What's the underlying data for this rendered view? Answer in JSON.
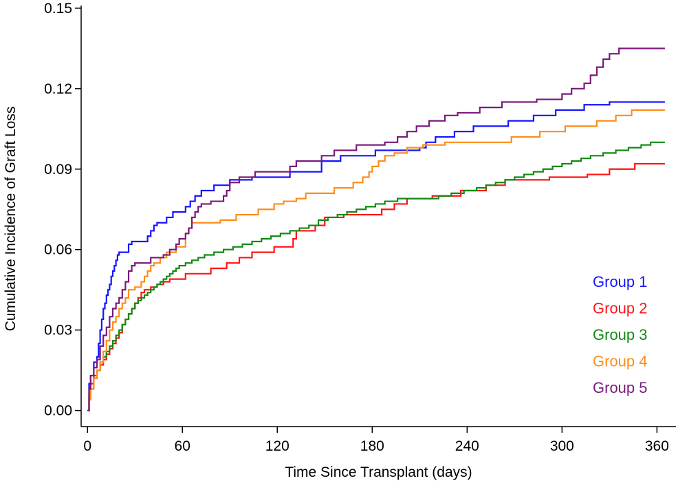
{
  "chart_data": {
    "type": "line",
    "title": "",
    "xlabel": "Time Since Transplant (days)",
    "ylabel": "Cumulative Incidence of Graft Loss",
    "xlim": [
      -4,
      372
    ],
    "ylim": [
      -0.006,
      0.151
    ],
    "xticks": [
      0,
      60,
      120,
      180,
      240,
      300,
      360
    ],
    "xtick_labels": [
      "0",
      "60",
      "120",
      "180",
      "240",
      "300",
      "360"
    ],
    "yticks": [
      0.0,
      0.03,
      0.06,
      0.09,
      0.12,
      0.15
    ],
    "ytick_labels": [
      "0.00",
      "0.03",
      "0.06",
      "0.09",
      "0.12",
      "0.15"
    ],
    "grid": false,
    "legend_position": "bottom-right",
    "step": true,
    "series": [
      {
        "name": "Group 1",
        "color": "#1414ff",
        "points": [
          [
            0,
            0
          ],
          [
            1,
            0.01
          ],
          [
            2,
            0.013
          ],
          [
            4,
            0.018
          ],
          [
            6,
            0.02
          ],
          [
            7,
            0.025
          ],
          [
            8,
            0.03
          ],
          [
            9,
            0.034
          ],
          [
            10,
            0.038
          ],
          [
            11,
            0.04
          ],
          [
            12,
            0.043
          ],
          [
            13,
            0.045
          ],
          [
            14,
            0.047
          ],
          [
            15,
            0.05
          ],
          [
            16,
            0.052
          ],
          [
            17,
            0.054
          ],
          [
            18,
            0.056
          ],
          [
            19,
            0.058
          ],
          [
            20,
            0.059
          ],
          [
            26,
            0.062
          ],
          [
            28,
            0.063
          ],
          [
            38,
            0.065
          ],
          [
            40,
            0.067
          ],
          [
            42,
            0.069
          ],
          [
            44,
            0.07
          ],
          [
            50,
            0.072
          ],
          [
            54,
            0.074
          ],
          [
            62,
            0.076
          ],
          [
            65,
            0.078
          ],
          [
            68,
            0.08
          ],
          [
            72,
            0.082
          ],
          [
            80,
            0.084
          ],
          [
            90,
            0.086
          ],
          [
            104,
            0.087
          ],
          [
            128,
            0.089
          ],
          [
            148,
            0.093
          ],
          [
            160,
            0.095
          ],
          [
            182,
            0.097
          ],
          [
            210,
            0.098
          ],
          [
            214,
            0.1
          ],
          [
            220,
            0.102
          ],
          [
            232,
            0.104
          ],
          [
            244,
            0.106
          ],
          [
            266,
            0.108
          ],
          [
            282,
            0.11
          ],
          [
            296,
            0.112
          ],
          [
            314,
            0.114
          ],
          [
            330,
            0.115
          ],
          [
            365,
            0.115
          ]
        ]
      },
      {
        "name": "Group 2",
        "color": "#ff1414",
        "points": [
          [
            0,
            0
          ],
          [
            1,
            0.005
          ],
          [
            2,
            0.01
          ],
          [
            4,
            0.013
          ],
          [
            6,
            0.015
          ],
          [
            8,
            0.017
          ],
          [
            10,
            0.019
          ],
          [
            12,
            0.021
          ],
          [
            14,
            0.023
          ],
          [
            16,
            0.025
          ],
          [
            18,
            0.027
          ],
          [
            20,
            0.029
          ],
          [
            22,
            0.032
          ],
          [
            24,
            0.034
          ],
          [
            26,
            0.036
          ],
          [
            28,
            0.038
          ],
          [
            30,
            0.04
          ],
          [
            32,
            0.042
          ],
          [
            34,
            0.044
          ],
          [
            36,
            0.045
          ],
          [
            40,
            0.046
          ],
          [
            44,
            0.047
          ],
          [
            48,
            0.048
          ],
          [
            52,
            0.049
          ],
          [
            62,
            0.051
          ],
          [
            78,
            0.053
          ],
          [
            88,
            0.055
          ],
          [
            96,
            0.057
          ],
          [
            104,
            0.059
          ],
          [
            118,
            0.061
          ],
          [
            130,
            0.064
          ],
          [
            132,
            0.067
          ],
          [
            144,
            0.069
          ],
          [
            150,
            0.072
          ],
          [
            162,
            0.073
          ],
          [
            186,
            0.075
          ],
          [
            194,
            0.077
          ],
          [
            202,
            0.079
          ],
          [
            218,
            0.08
          ],
          [
            236,
            0.082
          ],
          [
            252,
            0.084
          ],
          [
            264,
            0.086
          ],
          [
            292,
            0.087
          ],
          [
            316,
            0.088
          ],
          [
            330,
            0.09
          ],
          [
            346,
            0.092
          ],
          [
            365,
            0.092
          ]
        ]
      },
      {
        "name": "Group 3",
        "color": "#138a13",
        "points": [
          [
            0,
            0
          ],
          [
            1,
            0.005
          ],
          [
            2,
            0.008
          ],
          [
            4,
            0.012
          ],
          [
            6,
            0.015
          ],
          [
            8,
            0.018
          ],
          [
            10,
            0.02
          ],
          [
            12,
            0.022
          ],
          [
            14,
            0.024
          ],
          [
            16,
            0.026
          ],
          [
            18,
            0.028
          ],
          [
            20,
            0.03
          ],
          [
            22,
            0.032
          ],
          [
            24,
            0.034
          ],
          [
            26,
            0.036
          ],
          [
            28,
            0.038
          ],
          [
            30,
            0.04
          ],
          [
            32,
            0.041
          ],
          [
            34,
            0.042
          ],
          [
            36,
            0.043
          ],
          [
            38,
            0.044
          ],
          [
            40,
            0.045
          ],
          [
            42,
            0.046
          ],
          [
            44,
            0.047
          ],
          [
            46,
            0.048
          ],
          [
            48,
            0.049
          ],
          [
            50,
            0.05
          ],
          [
            52,
            0.051
          ],
          [
            54,
            0.052
          ],
          [
            56,
            0.053
          ],
          [
            58,
            0.054
          ],
          [
            62,
            0.055
          ],
          [
            66,
            0.056
          ],
          [
            70,
            0.057
          ],
          [
            74,
            0.058
          ],
          [
            80,
            0.059
          ],
          [
            86,
            0.06
          ],
          [
            92,
            0.061
          ],
          [
            98,
            0.062
          ],
          [
            104,
            0.063
          ],
          [
            110,
            0.064
          ],
          [
            116,
            0.065
          ],
          [
            122,
            0.066
          ],
          [
            128,
            0.067
          ],
          [
            134,
            0.068
          ],
          [
            140,
            0.069
          ],
          [
            146,
            0.071
          ],
          [
            152,
            0.072
          ],
          [
            158,
            0.073
          ],
          [
            164,
            0.074
          ],
          [
            170,
            0.075
          ],
          [
            176,
            0.076
          ],
          [
            182,
            0.077
          ],
          [
            188,
            0.078
          ],
          [
            196,
            0.079
          ],
          [
            206,
            0.079
          ],
          [
            214,
            0.079
          ],
          [
            222,
            0.08
          ],
          [
            230,
            0.081
          ],
          [
            238,
            0.082
          ],
          [
            246,
            0.083
          ],
          [
            252,
            0.084
          ],
          [
            258,
            0.085
          ],
          [
            264,
            0.086
          ],
          [
            270,
            0.087
          ],
          [
            276,
            0.088
          ],
          [
            282,
            0.089
          ],
          [
            288,
            0.09
          ],
          [
            294,
            0.091
          ],
          [
            300,
            0.092
          ],
          [
            306,
            0.093
          ],
          [
            312,
            0.094
          ],
          [
            318,
            0.095
          ],
          [
            326,
            0.096
          ],
          [
            334,
            0.097
          ],
          [
            342,
            0.098
          ],
          [
            350,
            0.099
          ],
          [
            356,
            0.1
          ],
          [
            365,
            0.1
          ]
        ]
      },
      {
        "name": "Group 4",
        "color": "#ff8c1a",
        "points": [
          [
            0,
            0
          ],
          [
            1,
            0.004
          ],
          [
            2,
            0.008
          ],
          [
            4,
            0.012
          ],
          [
            6,
            0.015
          ],
          [
            8,
            0.018
          ],
          [
            10,
            0.022
          ],
          [
            12,
            0.026
          ],
          [
            14,
            0.03
          ],
          [
            16,
            0.033
          ],
          [
            18,
            0.035
          ],
          [
            20,
            0.038
          ],
          [
            22,
            0.04
          ],
          [
            24,
            0.042
          ],
          [
            26,
            0.045
          ],
          [
            30,
            0.046
          ],
          [
            34,
            0.048
          ],
          [
            36,
            0.05
          ],
          [
            38,
            0.052
          ],
          [
            40,
            0.054
          ],
          [
            42,
            0.055
          ],
          [
            46,
            0.057
          ],
          [
            50,
            0.059
          ],
          [
            56,
            0.061
          ],
          [
            62,
            0.066
          ],
          [
            64,
            0.068
          ],
          [
            66,
            0.07
          ],
          [
            84,
            0.071
          ],
          [
            94,
            0.073
          ],
          [
            108,
            0.075
          ],
          [
            118,
            0.077
          ],
          [
            124,
            0.078
          ],
          [
            132,
            0.079
          ],
          [
            138,
            0.081
          ],
          [
            156,
            0.083
          ],
          [
            168,
            0.085
          ],
          [
            174,
            0.087
          ],
          [
            178,
            0.089
          ],
          [
            180,
            0.091
          ],
          [
            184,
            0.093
          ],
          [
            188,
            0.095
          ],
          [
            194,
            0.096
          ],
          [
            202,
            0.098
          ],
          [
            212,
            0.099
          ],
          [
            226,
            0.1
          ],
          [
            268,
            0.102
          ],
          [
            286,
            0.104
          ],
          [
            302,
            0.106
          ],
          [
            322,
            0.108
          ],
          [
            334,
            0.11
          ],
          [
            344,
            0.112
          ],
          [
            365,
            0.112
          ]
        ]
      },
      {
        "name": "Group 5",
        "color": "#7a197a",
        "points": [
          [
            0,
            0
          ],
          [
            1,
            0.008
          ],
          [
            2,
            0.013
          ],
          [
            4,
            0.016
          ],
          [
            6,
            0.019
          ],
          [
            8,
            0.024
          ],
          [
            10,
            0.028
          ],
          [
            12,
            0.031
          ],
          [
            14,
            0.035
          ],
          [
            16,
            0.038
          ],
          [
            18,
            0.04
          ],
          [
            20,
            0.042
          ],
          [
            22,
            0.045
          ],
          [
            24,
            0.048
          ],
          [
            26,
            0.052
          ],
          [
            28,
            0.054
          ],
          [
            30,
            0.055
          ],
          [
            40,
            0.057
          ],
          [
            48,
            0.058
          ],
          [
            52,
            0.06
          ],
          [
            56,
            0.062
          ],
          [
            58,
            0.064
          ],
          [
            62,
            0.066
          ],
          [
            64,
            0.068
          ],
          [
            66,
            0.072
          ],
          [
            68,
            0.074
          ],
          [
            70,
            0.076
          ],
          [
            72,
            0.077
          ],
          [
            78,
            0.078
          ],
          [
            86,
            0.08
          ],
          [
            88,
            0.082
          ],
          [
            90,
            0.085
          ],
          [
            96,
            0.087
          ],
          [
            106,
            0.089
          ],
          [
            128,
            0.091
          ],
          [
            132,
            0.093
          ],
          [
            148,
            0.095
          ],
          [
            156,
            0.097
          ],
          [
            170,
            0.099
          ],
          [
            188,
            0.1
          ],
          [
            196,
            0.102
          ],
          [
            202,
            0.104
          ],
          [
            208,
            0.106
          ],
          [
            216,
            0.108
          ],
          [
            226,
            0.11
          ],
          [
            234,
            0.111
          ],
          [
            248,
            0.113
          ],
          [
            262,
            0.115
          ],
          [
            284,
            0.116
          ],
          [
            300,
            0.118
          ],
          [
            306,
            0.12
          ],
          [
            314,
            0.122
          ],
          [
            318,
            0.125
          ],
          [
            322,
            0.128
          ],
          [
            326,
            0.131
          ],
          [
            330,
            0.133
          ],
          [
            336,
            0.135
          ],
          [
            365,
            0.135
          ]
        ]
      }
    ]
  }
}
